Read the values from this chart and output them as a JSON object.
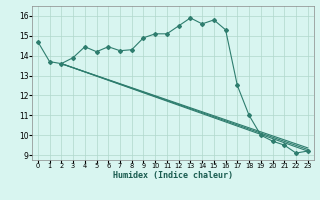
{
  "xlabel": "Humidex (Indice chaleur)",
  "xlim": [
    -0.5,
    23.5
  ],
  "ylim": [
    8.75,
    16.5
  ],
  "yticks": [
    9,
    10,
    11,
    12,
    13,
    14,
    15,
    16
  ],
  "xticks": [
    0,
    1,
    2,
    3,
    4,
    5,
    6,
    7,
    8,
    9,
    10,
    11,
    12,
    13,
    14,
    15,
    16,
    17,
    18,
    19,
    20,
    21,
    22,
    23
  ],
  "bg_color": "#d8f5f0",
  "grid_color": "#b0d8cc",
  "line_color": "#2e7d6e",
  "curve_x": [
    0,
    1,
    2,
    3,
    4,
    5,
    6,
    7,
    8,
    9,
    10,
    11,
    12,
    13,
    14,
    15,
    16,
    17,
    18,
    19,
    20,
    21,
    22,
    23
  ],
  "curve_y": [
    14.7,
    13.7,
    13.6,
    13.9,
    14.45,
    14.2,
    14.45,
    14.25,
    14.3,
    14.9,
    15.1,
    15.1,
    15.5,
    15.9,
    15.6,
    15.8,
    15.3,
    12.5,
    11.0,
    10.0,
    9.7,
    9.5,
    9.1,
    9.2
  ],
  "straight_lines": [
    {
      "x": [
        2,
        23
      ],
      "y": [
        13.6,
        9.2
      ]
    },
    {
      "x": [
        2,
        23
      ],
      "y": [
        13.6,
        9.28
      ]
    },
    {
      "x": [
        2,
        23
      ],
      "y": [
        13.6,
        9.36
      ]
    }
  ]
}
